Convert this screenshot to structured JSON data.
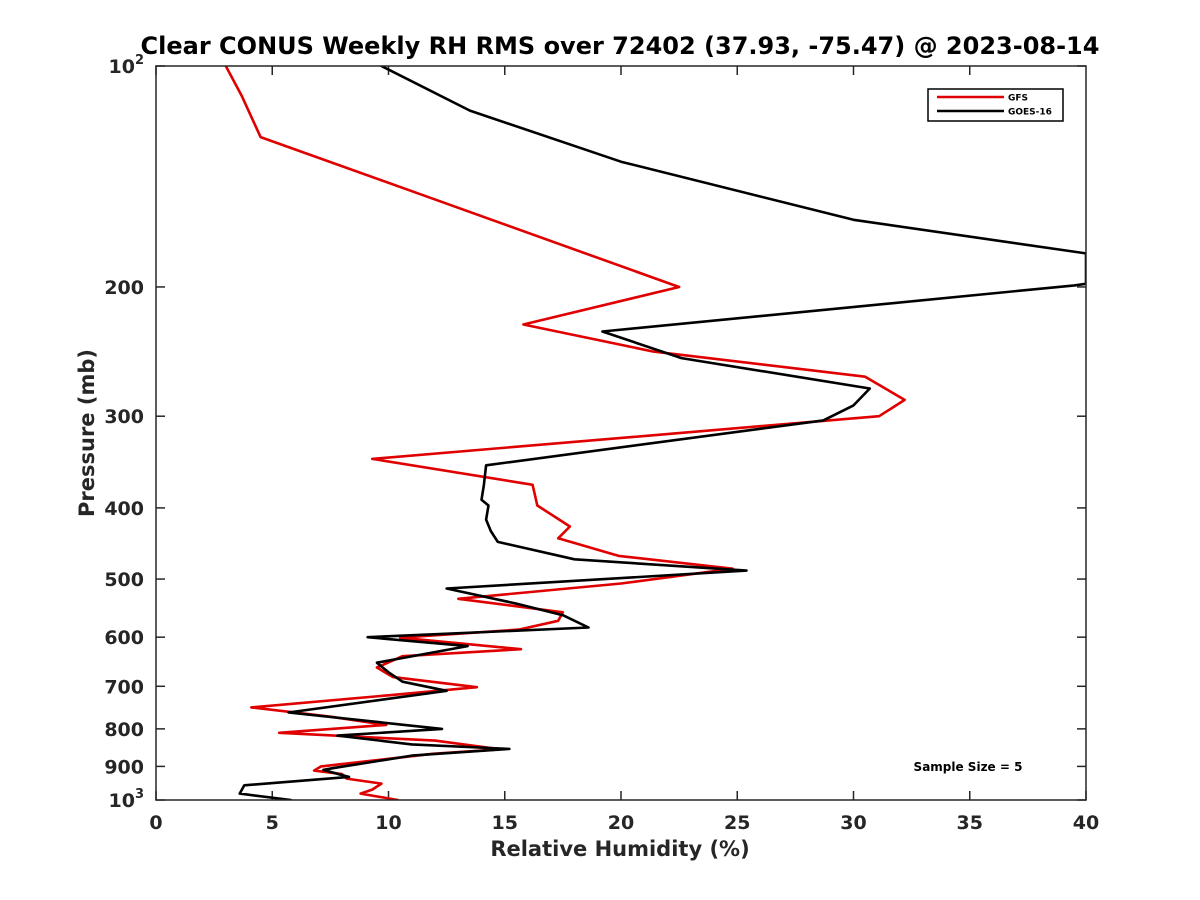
{
  "chart_data": {
    "type": "line",
    "title": "Clear CONUS Weekly RH RMS over 72402 (37.93, -75.47) @ 2023-08-14",
    "xlabel": "Relative Humidity (%)",
    "ylabel": "Pressure (mb)",
    "xlim": [
      0,
      40
    ],
    "ylim": [
      100,
      1000
    ],
    "yscale": "log",
    "y_reversed": true,
    "xticks": [
      0,
      5,
      10,
      15,
      20,
      25,
      30,
      35,
      40
    ],
    "yticks": [
      {
        "value": 100,
        "label": "10",
        "sup": "2"
      },
      {
        "value": 200,
        "label": "200"
      },
      {
        "value": 300,
        "label": "300"
      },
      {
        "value": 400,
        "label": "400"
      },
      {
        "value": 500,
        "label": "500"
      },
      {
        "value": 600,
        "label": "600"
      },
      {
        "value": 700,
        "label": "700"
      },
      {
        "value": 800,
        "label": "800"
      },
      {
        "value": 900,
        "label": "900"
      },
      {
        "value": 1000,
        "label": "10",
        "sup": "3"
      }
    ],
    "grid": false,
    "legend_position": "top-right",
    "annotation": "Sample Size = 5",
    "series": [
      {
        "name": "GFS",
        "color": "#e00000",
        "points": [
          [
            3.0,
            100
          ],
          [
            3.7,
            110
          ],
          [
            4.5,
            125
          ],
          [
            11.5,
            150
          ],
          [
            22.5,
            200
          ],
          [
            15.8,
            225
          ],
          [
            21.4,
            245
          ],
          [
            30.5,
            265
          ],
          [
            32.2,
            285
          ],
          [
            31.1,
            300
          ],
          [
            9.3,
            343
          ],
          [
            16.2,
            372
          ],
          [
            16.4,
            397
          ],
          [
            17.8,
            424
          ],
          [
            17.3,
            440
          ],
          [
            19.9,
            465
          ],
          [
            24.8,
            484
          ],
          [
            20.0,
            507
          ],
          [
            13.0,
            532
          ],
          [
            17.5,
            555
          ],
          [
            17.3,
            570
          ],
          [
            15.6,
            586
          ],
          [
            10.5,
            601
          ],
          [
            15.7,
            623
          ],
          [
            10.6,
            637
          ],
          [
            9.5,
            660
          ],
          [
            10.2,
            680
          ],
          [
            13.8,
            702
          ],
          [
            10.0,
            720
          ],
          [
            4.1,
            748
          ],
          [
            7.5,
            770
          ],
          [
            9.9,
            790
          ],
          [
            5.3,
            810
          ],
          [
            12.0,
            830
          ],
          [
            14.8,
            853
          ],
          [
            11.9,
            865
          ],
          [
            7.1,
            900
          ],
          [
            6.8,
            912
          ],
          [
            8.0,
            922
          ],
          [
            8.2,
            935
          ],
          [
            9.7,
            950
          ],
          [
            9.3,
            968
          ],
          [
            8.8,
            980
          ],
          [
            10.4,
            1000
          ]
        ]
      },
      {
        "name": "GOES-16",
        "color": "#000000",
        "points": [
          [
            9.7,
            100
          ],
          [
            13.5,
            115
          ],
          [
            20.0,
            135
          ],
          [
            30.0,
            162
          ],
          [
            40.0,
            180
          ],
          [
            40.0,
            198
          ],
          [
            39.5,
            199
          ],
          [
            19.2,
            230
          ],
          [
            22.6,
            250
          ],
          [
            30.7,
            275
          ],
          [
            30.0,
            290
          ],
          [
            28.7,
            304
          ],
          [
            14.2,
            350
          ],
          [
            14.1,
            373
          ],
          [
            14.0,
            390
          ],
          [
            14.3,
            397
          ],
          [
            14.2,
            415
          ],
          [
            14.4,
            430
          ],
          [
            14.7,
            445
          ],
          [
            18.0,
            470
          ],
          [
            25.4,
            487
          ],
          [
            12.5,
            515
          ],
          [
            15.5,
            540
          ],
          [
            17.5,
            560
          ],
          [
            18.6,
            582
          ],
          [
            9.1,
            600
          ],
          [
            13.4,
            617
          ],
          [
            9.5,
            650
          ],
          [
            10.0,
            670
          ],
          [
            10.6,
            690
          ],
          [
            12.5,
            710
          ],
          [
            5.7,
            760
          ],
          [
            12.3,
            800
          ],
          [
            7.8,
            817
          ],
          [
            11.0,
            840
          ],
          [
            15.2,
            852
          ],
          [
            11.0,
            870
          ],
          [
            7.6,
            905
          ],
          [
            7.2,
            910
          ],
          [
            8.0,
            925
          ],
          [
            8.3,
            930
          ],
          [
            3.8,
            955
          ],
          [
            3.6,
            980
          ],
          [
            5.8,
            1000
          ]
        ]
      }
    ]
  }
}
